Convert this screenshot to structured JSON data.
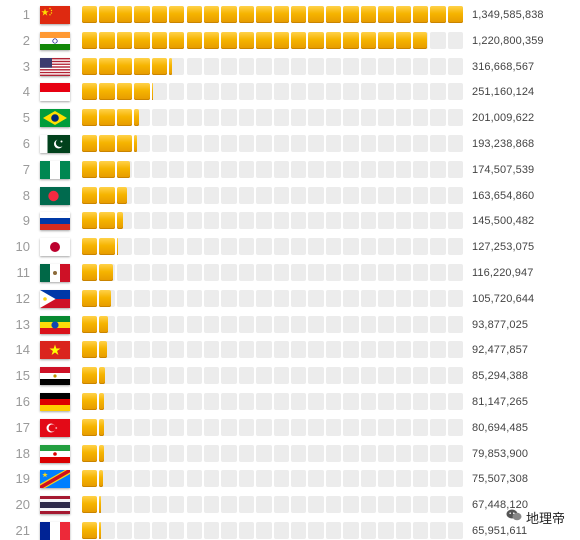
{
  "chart_data": {
    "type": "bar",
    "title": "",
    "xlabel": "",
    "ylabel": "",
    "categories": [
      "1",
      "2",
      "3",
      "4",
      "5",
      "6",
      "7",
      "8",
      "9",
      "10",
      "11",
      "12",
      "13",
      "14",
      "15",
      "16",
      "17",
      "18",
      "19",
      "20",
      "21"
    ],
    "flags": [
      "china",
      "india",
      "usa",
      "indonesia",
      "brazil",
      "pakistan",
      "nigeria",
      "bangladesh",
      "russia",
      "japan",
      "mexico",
      "philippines",
      "ethiopia",
      "vietnam",
      "egypt",
      "germany",
      "turkey",
      "iran",
      "dr-congo",
      "thailand",
      "france"
    ],
    "values": [
      1349585838,
      1220800359,
      316668567,
      251160124,
      201009622,
      193238868,
      174507539,
      163654860,
      145500482,
      127253075,
      116220947,
      105720644,
      93877025,
      92477857,
      85294388,
      81147265,
      80694485,
      79853900,
      75507308,
      67448120,
      65951611
    ],
    "value_labels": [
      "1,349,585,838",
      "1,220,800,359",
      "316,668,567",
      "251,160,124",
      "201,009,622",
      "193,238,868",
      "174,507,539",
      "163,654,860",
      "145,500,482",
      "127,253,075",
      "116,220,947",
      "105,720,644",
      "93,877,025",
      "92,477,857",
      "85,294,388",
      "81,147,265",
      "80,694,485",
      "79,853,900",
      "75,507,308",
      "67,448,120",
      "65,951,611"
    ],
    "max": 1349585838,
    "segments": 22,
    "colors": {
      "bar": "#f6b400",
      "track": "#ececec",
      "rank": "#9a9a9a",
      "value": "#444444"
    }
  },
  "watermark": {
    "text": "地理帝",
    "icon": "wechat-icon"
  }
}
